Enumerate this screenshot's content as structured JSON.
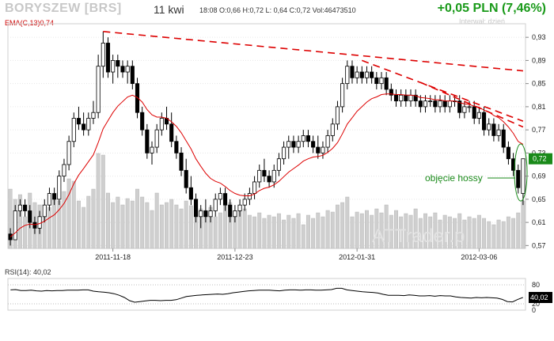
{
  "header": {
    "ticker": "BORYSZEW [BRS]",
    "period": "11 kwi",
    "ohlc_text": "18:08  O:0,66  H:0,72  L: 0,64  C:0,72  Vol:46473510",
    "change": "+0,05 PLN (7,46%)",
    "interval": "Interwał: dzień",
    "ema_label": "EMA(C,13)0,74",
    "rsi_label": "RSI(14): 40,02",
    "watermark": "ATTrader.pl"
  },
  "colors": {
    "ema": "#dd0000",
    "trend": "#dd0000",
    "volume": "#c8c8c8",
    "candle": "#000000",
    "change": "#1a9a1a",
    "annotation": "#1a8a1a"
  },
  "annotation": {
    "text": "objęcie hossy"
  },
  "chart_data": {
    "type": "candlestick",
    "price_axis": {
      "ticks": [
        "0,57",
        "0,61",
        "0,65",
        "0,69",
        "0,73",
        "0,77",
        "0,81",
        "0,85",
        "0,89",
        "0,93"
      ],
      "range": [
        0.565,
        0.948
      ]
    },
    "last_price_label": "0,72",
    "x_labels": [
      "2011-11-18",
      "2011-12-23",
      "2012-01-31",
      "2012-03-06"
    ],
    "x_label_index": [
      21,
      46,
      71,
      96
    ],
    "candles": [
      [
        0.59,
        0.6,
        0.57,
        0.58
      ],
      [
        0.58,
        0.64,
        0.58,
        0.63
      ],
      [
        0.63,
        0.65,
        0.62,
        0.64
      ],
      [
        0.64,
        0.65,
        0.62,
        0.63
      ],
      [
        0.63,
        0.64,
        0.6,
        0.61
      ],
      [
        0.61,
        0.62,
        0.59,
        0.6
      ],
      [
        0.6,
        0.63,
        0.59,
        0.62
      ],
      [
        0.62,
        0.65,
        0.61,
        0.64
      ],
      [
        0.64,
        0.67,
        0.63,
        0.66
      ],
      [
        0.66,
        0.67,
        0.64,
        0.65
      ],
      [
        0.65,
        0.7,
        0.64,
        0.69
      ],
      [
        0.69,
        0.72,
        0.68,
        0.71
      ],
      [
        0.71,
        0.76,
        0.7,
        0.75
      ],
      [
        0.75,
        0.8,
        0.74,
        0.79
      ],
      [
        0.79,
        0.81,
        0.77,
        0.78
      ],
      [
        0.78,
        0.8,
        0.76,
        0.77
      ],
      [
        0.77,
        0.8,
        0.76,
        0.79
      ],
      [
        0.79,
        0.82,
        0.78,
        0.8
      ],
      [
        0.8,
        0.9,
        0.79,
        0.88
      ],
      [
        0.88,
        0.94,
        0.86,
        0.92
      ],
      [
        0.92,
        0.93,
        0.86,
        0.87
      ],
      [
        0.87,
        0.9,
        0.85,
        0.89
      ],
      [
        0.89,
        0.9,
        0.86,
        0.88
      ],
      [
        0.88,
        0.89,
        0.86,
        0.87
      ],
      [
        0.87,
        0.89,
        0.85,
        0.88
      ],
      [
        0.88,
        0.89,
        0.84,
        0.85
      ],
      [
        0.85,
        0.86,
        0.79,
        0.8
      ],
      [
        0.8,
        0.81,
        0.76,
        0.77
      ],
      [
        0.77,
        0.78,
        0.72,
        0.73
      ],
      [
        0.73,
        0.75,
        0.71,
        0.74
      ],
      [
        0.74,
        0.78,
        0.73,
        0.77
      ],
      [
        0.77,
        0.8,
        0.76,
        0.79
      ],
      [
        0.79,
        0.81,
        0.77,
        0.78
      ],
      [
        0.78,
        0.8,
        0.74,
        0.75
      ],
      [
        0.75,
        0.76,
        0.72,
        0.73
      ],
      [
        0.73,
        0.74,
        0.69,
        0.7
      ],
      [
        0.7,
        0.72,
        0.66,
        0.67
      ],
      [
        0.67,
        0.69,
        0.64,
        0.65
      ],
      [
        0.65,
        0.66,
        0.61,
        0.62
      ],
      [
        0.62,
        0.64,
        0.6,
        0.63
      ],
      [
        0.63,
        0.65,
        0.61,
        0.62
      ],
      [
        0.62,
        0.64,
        0.61,
        0.63
      ],
      [
        0.63,
        0.66,
        0.62,
        0.65
      ],
      [
        0.65,
        0.67,
        0.64,
        0.66
      ],
      [
        0.66,
        0.67,
        0.63,
        0.64
      ],
      [
        0.64,
        0.65,
        0.61,
        0.62
      ],
      [
        0.62,
        0.64,
        0.61,
        0.63
      ],
      [
        0.63,
        0.65,
        0.62,
        0.64
      ],
      [
        0.64,
        0.66,
        0.63,
        0.65
      ],
      [
        0.65,
        0.67,
        0.64,
        0.66
      ],
      [
        0.66,
        0.69,
        0.65,
        0.68
      ],
      [
        0.68,
        0.71,
        0.67,
        0.7
      ],
      [
        0.7,
        0.72,
        0.68,
        0.69
      ],
      [
        0.69,
        0.7,
        0.67,
        0.68
      ],
      [
        0.68,
        0.71,
        0.67,
        0.7
      ],
      [
        0.7,
        0.73,
        0.69,
        0.72
      ],
      [
        0.72,
        0.75,
        0.71,
        0.74
      ],
      [
        0.74,
        0.76,
        0.72,
        0.75
      ],
      [
        0.75,
        0.76,
        0.73,
        0.74
      ],
      [
        0.74,
        0.76,
        0.73,
        0.75
      ],
      [
        0.75,
        0.77,
        0.74,
        0.76
      ],
      [
        0.76,
        0.77,
        0.74,
        0.75
      ],
      [
        0.75,
        0.76,
        0.73,
        0.74
      ],
      [
        0.74,
        0.76,
        0.72,
        0.73
      ],
      [
        0.73,
        0.75,
        0.72,
        0.74
      ],
      [
        0.74,
        0.77,
        0.73,
        0.76
      ],
      [
        0.76,
        0.79,
        0.75,
        0.78
      ],
      [
        0.78,
        0.82,
        0.77,
        0.81
      ],
      [
        0.81,
        0.86,
        0.8,
        0.85
      ],
      [
        0.85,
        0.89,
        0.84,
        0.88
      ],
      [
        0.88,
        0.89,
        0.85,
        0.86
      ],
      [
        0.86,
        0.88,
        0.85,
        0.87
      ],
      [
        0.87,
        0.88,
        0.85,
        0.86
      ],
      [
        0.86,
        0.88,
        0.85,
        0.87
      ],
      [
        0.87,
        0.88,
        0.85,
        0.86
      ],
      [
        0.86,
        0.87,
        0.84,
        0.85
      ],
      [
        0.85,
        0.87,
        0.84,
        0.86
      ],
      [
        0.86,
        0.87,
        0.83,
        0.84
      ],
      [
        0.84,
        0.85,
        0.82,
        0.83
      ],
      [
        0.83,
        0.84,
        0.81,
        0.82
      ],
      [
        0.82,
        0.84,
        0.81,
        0.83
      ],
      [
        0.83,
        0.84,
        0.81,
        0.82
      ],
      [
        0.82,
        0.84,
        0.81,
        0.83
      ],
      [
        0.83,
        0.84,
        0.81,
        0.82
      ],
      [
        0.82,
        0.83,
        0.8,
        0.81
      ],
      [
        0.81,
        0.83,
        0.8,
        0.82
      ],
      [
        0.82,
        0.83,
        0.81,
        0.82
      ],
      [
        0.82,
        0.83,
        0.8,
        0.81
      ],
      [
        0.81,
        0.83,
        0.8,
        0.82
      ],
      [
        0.82,
        0.83,
        0.8,
        0.81
      ],
      [
        0.81,
        0.83,
        0.8,
        0.82
      ],
      [
        0.82,
        0.83,
        0.81,
        0.82
      ],
      [
        0.82,
        0.83,
        0.79,
        0.8
      ],
      [
        0.8,
        0.82,
        0.79,
        0.81
      ],
      [
        0.81,
        0.82,
        0.8,
        0.81
      ],
      [
        0.81,
        0.82,
        0.78,
        0.79
      ],
      [
        0.79,
        0.81,
        0.78,
        0.8
      ],
      [
        0.8,
        0.81,
        0.76,
        0.77
      ],
      [
        0.77,
        0.79,
        0.76,
        0.78
      ],
      [
        0.78,
        0.79,
        0.75,
        0.76
      ],
      [
        0.76,
        0.78,
        0.75,
        0.77
      ],
      [
        0.77,
        0.78,
        0.73,
        0.74
      ],
      [
        0.74,
        0.75,
        0.71,
        0.72
      ],
      [
        0.72,
        0.73,
        0.69,
        0.7
      ],
      [
        0.7,
        0.71,
        0.66,
        0.67
      ],
      [
        0.66,
        0.72,
        0.64,
        0.72
      ]
    ],
    "ema": [
      0.585,
      0.592,
      0.6,
      0.605,
      0.607,
      0.606,
      0.608,
      0.612,
      0.618,
      0.623,
      0.632,
      0.643,
      0.658,
      0.677,
      0.692,
      0.703,
      0.715,
      0.727,
      0.748,
      0.772,
      0.786,
      0.8,
      0.811,
      0.819,
      0.827,
      0.83,
      0.826,
      0.818,
      0.805,
      0.796,
      0.792,
      0.792,
      0.79,
      0.784,
      0.776,
      0.765,
      0.751,
      0.737,
      0.72,
      0.707,
      0.695,
      0.686,
      0.681,
      0.678,
      0.672,
      0.665,
      0.66,
      0.657,
      0.656,
      0.656,
      0.659,
      0.665,
      0.669,
      0.671,
      0.675,
      0.681,
      0.689,
      0.697,
      0.703,
      0.709,
      0.716,
      0.72,
      0.723,
      0.724,
      0.726,
      0.731,
      0.738,
      0.748,
      0.763,
      0.78,
      0.791,
      0.802,
      0.81,
      0.818,
      0.824,
      0.827,
      0.831,
      0.832,
      0.832,
      0.831,
      0.831,
      0.83,
      0.83,
      0.829,
      0.826,
      0.825,
      0.824,
      0.822,
      0.822,
      0.82,
      0.82,
      0.82,
      0.817,
      0.815,
      0.814,
      0.811,
      0.809,
      0.804,
      0.801,
      0.795,
      0.791,
      0.784,
      0.775,
      0.764,
      0.75,
      0.745
    ],
    "volume": [
      75,
      62,
      68,
      40,
      70,
      58,
      55,
      45,
      52,
      63,
      60,
      72,
      88,
      85,
      60,
      52,
      66,
      75,
      120,
      118,
      70,
      58,
      65,
      55,
      63,
      60,
      75,
      65,
      58,
      48,
      70,
      55,
      58,
      62,
      55,
      50,
      60,
      54,
      45,
      50,
      48,
      52,
      40,
      45,
      55,
      58,
      42,
      48,
      50,
      42,
      40,
      45,
      38,
      42,
      40,
      44,
      36,
      42,
      38,
      44,
      30,
      42,
      38,
      45,
      40,
      48,
      46,
      55,
      58,
      65,
      40,
      46,
      44,
      48,
      42,
      50,
      45,
      55,
      42,
      48,
      40,
      44,
      42,
      50,
      38,
      44,
      40,
      45,
      36,
      42,
      40,
      38,
      44,
      36,
      40,
      38,
      42,
      38,
      34,
      30,
      36,
      34,
      40,
      38,
      45,
      60
    ],
    "rsi": [
      64,
      65,
      62,
      62,
      63,
      61,
      60,
      62,
      61,
      62,
      62,
      63,
      63,
      63,
      64,
      64,
      60,
      58,
      57,
      55,
      52,
      47,
      40,
      30,
      25,
      27,
      29,
      31,
      31,
      30,
      31,
      31,
      33,
      38,
      43,
      45,
      47,
      48,
      49,
      50,
      51,
      50,
      52,
      55,
      57,
      59,
      61,
      62,
      63,
      63,
      63,
      62,
      61,
      63,
      64,
      64,
      63,
      64,
      64,
      63,
      63,
      64,
      65,
      69,
      69,
      64,
      62,
      60,
      58,
      57,
      56,
      54,
      50,
      47,
      47,
      47,
      46,
      48,
      47,
      45,
      45,
      46,
      44,
      46,
      45,
      45,
      42,
      40,
      39,
      38,
      40,
      39,
      40,
      39,
      38,
      34,
      27,
      26,
      34,
      40
    ],
    "rsi_axis": {
      "ticks": [
        "80",
        "20",
        "0"
      ],
      "range": [
        0,
        100
      ]
    },
    "rsi_last_label": "40,02",
    "trendlines": [
      {
        "from": [
          19,
          0.94
        ],
        "to": [
          105,
          0.872
        ]
      },
      {
        "from": [
          72,
          0.89
        ],
        "to": [
          105,
          0.785
        ]
      },
      {
        "from": [
          84,
          0.852
        ],
        "to": [
          105,
          0.775
        ]
      }
    ]
  }
}
